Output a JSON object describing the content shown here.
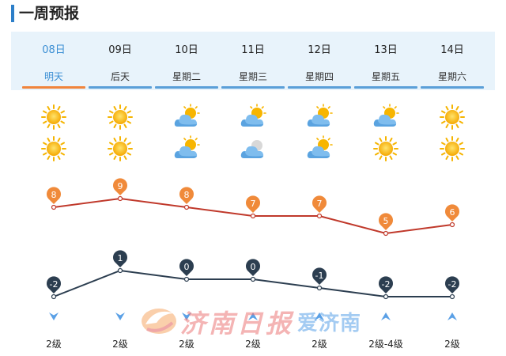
{
  "page": {
    "title": "一周预报"
  },
  "colors": {
    "accent": "#2d7fc9",
    "active_tab": "#f0843c",
    "high_line": "#c0392b",
    "high_marker": "#f08a3a",
    "low_line": "#2c3e50",
    "low_marker": "#2c3e50",
    "wind_arrow": "#5aa0e6"
  },
  "days": [
    {
      "date": "08日",
      "name": "明天",
      "icon_day": "sun-icon",
      "icon_night": "sun-icon",
      "high": 8,
      "low": -2,
      "wind": "2级",
      "wind_dir": "down"
    },
    {
      "date": "09日",
      "name": "后天",
      "icon_day": "sun-icon",
      "icon_night": "sun-icon",
      "high": 9,
      "low": 1,
      "wind": "2级",
      "wind_dir": "down"
    },
    {
      "date": "10日",
      "name": "星期二",
      "icon_day": "partly-cloudy-icon",
      "icon_night": "partly-cloudy-icon",
      "high": 8,
      "low": 0,
      "wind": "2级",
      "wind_dir": "down"
    },
    {
      "date": "11日",
      "name": "星期三",
      "icon_day": "partly-cloudy-icon",
      "icon_night": "cloudy-night-icon",
      "high": 7,
      "low": 0,
      "wind": "2级",
      "wind_dir": "up"
    },
    {
      "date": "12日",
      "name": "星期四",
      "icon_day": "partly-cloudy-icon",
      "icon_night": "partly-cloudy-icon",
      "high": 7,
      "low": -1,
      "wind": "2级",
      "wind_dir": "up"
    },
    {
      "date": "13日",
      "name": "星期五",
      "icon_day": "partly-cloudy-icon",
      "icon_night": "sun-icon",
      "high": 5,
      "low": -2,
      "wind": "2级-4级",
      "wind_dir": "up"
    },
    {
      "date": "14日",
      "name": "星期六",
      "icon_day": "sun-icon",
      "icon_night": "sun-icon",
      "high": 6,
      "low": -2,
      "wind": "2级",
      "wind_dir": "up"
    }
  ],
  "active_day": 0,
  "watermark": {
    "text_a": "济南日报",
    "text_b": "爱济南"
  }
}
